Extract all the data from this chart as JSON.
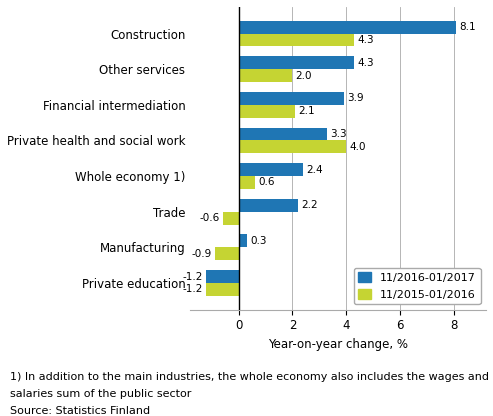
{
  "categories": [
    "Construction",
    "Other services",
    "Financial intermediation",
    "Private health and social work",
    "Whole economy 1)",
    "Trade",
    "Manufacturing",
    "Private education"
  ],
  "series1_label": "11/2016-01/2017",
  "series2_label": "11/2015-01/2016",
  "series1_values": [
    8.1,
    4.3,
    3.9,
    3.3,
    2.4,
    2.2,
    0.3,
    -1.2
  ],
  "series2_values": [
    4.3,
    2.0,
    2.1,
    4.0,
    0.6,
    -0.6,
    -0.9,
    -1.2
  ],
  "color1": "#1F76B4",
  "color2": "#C5D433",
  "xlabel": "Year-on-year change, %",
  "xlim": [
    -1.8,
    9.2
  ],
  "xticks": [
    0,
    2,
    4,
    6,
    8
  ],
  "footnote1": "1) In addition to the main industries, the whole economy also includes the wages and",
  "footnote2": "salaries sum of the public sector",
  "source": "Source: Statistics Finland",
  "bar_height": 0.36,
  "fontsize_labels": 8.5,
  "fontsize_values": 7.5,
  "fontsize_axis": 8.5,
  "fontsize_legend": 8.0,
  "fontsize_footnote": 8.0
}
